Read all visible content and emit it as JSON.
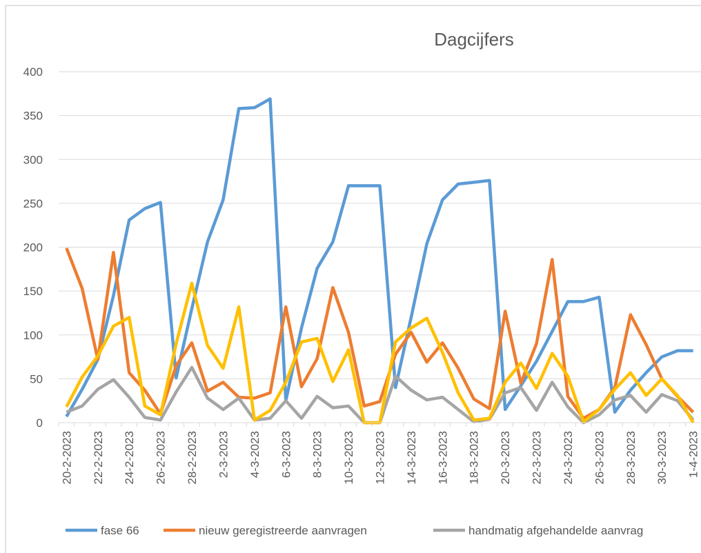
{
  "chart_data": {
    "type": "line",
    "title": "Dagcijfers",
    "categories": [
      "20-2-2023",
      null,
      "22-2-2023",
      null,
      "24-2-2023",
      null,
      "26-2-2023",
      null,
      "28-2-2023",
      null,
      "2-3-2023",
      null,
      "4-3-2023",
      null,
      "6-3-2023",
      null,
      "8-3-2023",
      null,
      "10-3-2023",
      null,
      "12-3-2023",
      null,
      "14-3-2023",
      null,
      "16-3-2023",
      null,
      "18-3-2023",
      null,
      "20-3-2023",
      null,
      "22-3-2023",
      null,
      "24-3-2023",
      null,
      "26-3-2023",
      null,
      "28-3-2023",
      null,
      "30-3-2023",
      null,
      "1-4-2023"
    ],
    "series": [
      {
        "name": "fase 66",
        "color": "#5b9bd5",
        "values": [
          7,
          38,
          72,
          145,
          231,
          244,
          251,
          51,
          130,
          206,
          254,
          358,
          359,
          369,
          25,
          108,
          176,
          206,
          270,
          270,
          270,
          40,
          120,
          204,
          254,
          272,
          274,
          276,
          15,
          42,
          70,
          104,
          138,
          138,
          143,
          12,
          37,
          57,
          75,
          82,
          82
        ]
      },
      {
        "name": "nieuw geregistreerde aanvragen",
        "color": "#ed7d31",
        "values": [
          199,
          153,
          72,
          194,
          57,
          37,
          10,
          65,
          91,
          36,
          46,
          29,
          28,
          34,
          132,
          41,
          73,
          154,
          103,
          19,
          24,
          78,
          103,
          69,
          91,
          62,
          27,
          16,
          127,
          45,
          90,
          186,
          30,
          5,
          15,
          40,
          123,
          89,
          50,
          30,
          12
        ]
      },
      {
        "name": "handmatig afgehandelde aanvrag",
        "color": "#a5a5a5",
        "values": [
          12,
          19,
          38,
          49,
          29,
          6,
          3,
          35,
          63,
          28,
          15,
          28,
          3,
          5,
          25,
          5,
          30,
          17,
          19,
          0,
          0,
          53,
          37,
          26,
          29,
          15,
          1,
          4,
          34,
          40,
          14,
          46,
          18,
          0,
          9,
          26,
          31,
          12,
          32,
          25,
          3
        ]
      },
      {
        "color": "#ffc000",
        "values": [
          18,
          52,
          76,
          110,
          120,
          19,
          9,
          90,
          159,
          88,
          62,
          132,
          3,
          14,
          46,
          92,
          96,
          47,
          83,
          0,
          0,
          92,
          108,
          119,
          80,
          34,
          3,
          5,
          46,
          68,
          39,
          79,
          53,
          1,
          15,
          38,
          57,
          31,
          50,
          31,
          0
        ]
      }
    ],
    "ylim": [
      0,
      400
    ],
    "yticks": [
      0,
      50,
      100,
      150,
      200,
      250,
      300,
      350,
      400
    ],
    "grid": true
  }
}
